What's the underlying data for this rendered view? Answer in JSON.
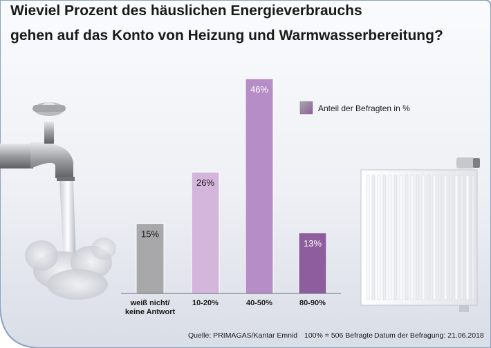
{
  "title_line1": "Wieviel Prozent des häuslichen Energieverbrauchs",
  "title_line2": "gehen auf das Konto von Heizung und Warmwasserbereitung?",
  "colors": {
    "bar_gray": "#a8a8aa",
    "bar_light_purple": "#d4b6dc",
    "bar_mid_purple": "#b68dc6",
    "bar_dark_purple": "#8e5d9d",
    "background_top": "#f7f8fb",
    "background_bottom": "#d8dce6"
  },
  "chart_data": {
    "type": "bar",
    "title": "",
    "categories": [
      [
        "weiß nicht/",
        "keine Antwort"
      ],
      [
        "10-20%"
      ],
      [
        "40-50%"
      ],
      [
        "80-90%"
      ]
    ],
    "values": [
      15,
      26,
      46,
      13
    ],
    "value_labels": [
      "15%",
      "26%",
      "46%",
      "13%"
    ],
    "legend": "Anteil der Befragten in %",
    "legend_position": "top-right",
    "ylim": [
      0,
      50
    ],
    "grid": false,
    "xlabel": "",
    "ylabel": ""
  },
  "footer": {
    "source": "Quelle: PRIMAGAS/Kantar Emnid",
    "sample": "100% = 506 Befragte",
    "date": "Datum der Befragung: 21.06.2018"
  }
}
